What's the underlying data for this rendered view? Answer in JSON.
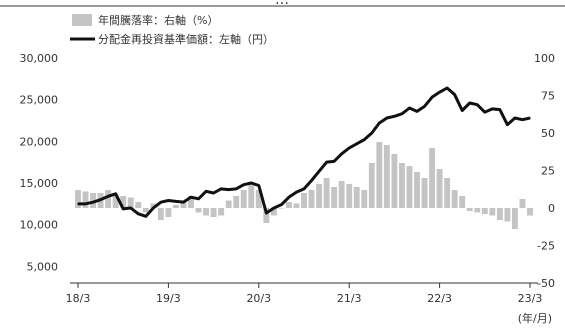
{
  "chart_data": {
    "type": "bar+line",
    "title": "…",
    "legend_placement": "top-left",
    "x_ticks": [
      "18/3",
      "19/3",
      "20/3",
      "21/3",
      "22/3",
      "23/3"
    ],
    "x_unit": "(年/月)",
    "left_axis": {
      "ticks": [
        "30,000",
        "25,000",
        "20,000",
        "15,000",
        "10,000",
        "5,000"
      ],
      "ylim": [
        3000,
        30000
      ]
    },
    "right_axis": {
      "ticks": [
        "100",
        "75",
        "50",
        "25",
        "0",
        "-25",
        "-50"
      ],
      "ylim": [
        -50,
        100
      ]
    },
    "grid": false,
    "colors": {
      "bar": "#c4c4c4",
      "line": "#111111"
    },
    "series": [
      {
        "name": "年間騰落率：右軸（%）",
        "kind": "bar",
        "axis": "right",
        "x": [
          "18/3",
          "18/4",
          "18/5",
          "18/6",
          "18/7",
          "18/8",
          "18/9",
          "18/10",
          "18/11",
          "18/12",
          "19/1",
          "19/2",
          "19/3",
          "19/4",
          "19/5",
          "19/6",
          "19/7",
          "19/8",
          "19/9",
          "19/10",
          "19/11",
          "19/12",
          "20/1",
          "20/2",
          "20/3",
          "20/4",
          "20/5",
          "20/6",
          "20/7",
          "20/8",
          "20/9",
          "20/10",
          "20/11",
          "20/12",
          "21/1",
          "21/2",
          "21/3",
          "21/4",
          "21/5",
          "21/6",
          "21/7",
          "21/8",
          "21/9",
          "21/10",
          "21/11",
          "21/12",
          "22/1",
          "22/2",
          "22/3",
          "22/4",
          "22/5",
          "22/6",
          "22/7",
          "22/8",
          "22/9",
          "22/10",
          "22/11",
          "22/12",
          "23/1",
          "23/2",
          "23/3"
        ],
        "values": [
          12,
          11,
          10,
          10,
          12,
          9,
          8,
          7,
          4,
          -3,
          3,
          -8,
          -6,
          2,
          4,
          8,
          -3,
          -5,
          -6,
          -5,
          5,
          8,
          12,
          16,
          12,
          -10,
          -5,
          0,
          4,
          3,
          10,
          12,
          16,
          20,
          14,
          18,
          16,
          14,
          12,
          30,
          44,
          42,
          36,
          30,
          28,
          24,
          20,
          40,
          26,
          20,
          12,
          8,
          -2,
          -3,
          -4,
          -5,
          -8,
          -9,
          -14,
          6,
          -5
        ]
      },
      {
        "name": "分配金再投資基準価額：左軸（円）",
        "kind": "line",
        "axis": "left",
        "x": [
          "18/3",
          "18/4",
          "18/5",
          "18/6",
          "18/7",
          "18/8",
          "18/9",
          "18/10",
          "18/11",
          "18/12",
          "19/1",
          "19/2",
          "19/3",
          "19/4",
          "19/5",
          "19/6",
          "19/7",
          "19/8",
          "19/9",
          "19/10",
          "19/11",
          "19/12",
          "20/1",
          "20/2",
          "20/3",
          "20/4",
          "20/5",
          "20/6",
          "20/7",
          "20/8",
          "20/9",
          "20/10",
          "20/11",
          "20/12",
          "21/1",
          "21/2",
          "21/3",
          "21/4",
          "21/5",
          "21/6",
          "21/7",
          "21/8",
          "21/9",
          "21/10",
          "21/11",
          "21/12",
          "22/1",
          "22/2",
          "22/3",
          "22/4",
          "22/5",
          "22/6",
          "22/7",
          "22/8",
          "22/9",
          "22/10",
          "22/11",
          "22/12",
          "23/1",
          "23/2",
          "23/3"
        ],
        "values": [
          12500,
          12500,
          12700,
          13000,
          13400,
          13700,
          11900,
          12000,
          11300,
          11000,
          12000,
          12700,
          12900,
          12800,
          12700,
          13300,
          13100,
          14000,
          13800,
          14300,
          14200,
          14300,
          14800,
          15000,
          14700,
          11400,
          12000,
          12400,
          13300,
          13900,
          14300,
          15300,
          16400,
          17500,
          17600,
          18500,
          19200,
          19700,
          20200,
          21000,
          22200,
          22800,
          23000,
          23300,
          24000,
          23600,
          24200,
          25300,
          25900,
          26400,
          25600,
          23700,
          24600,
          24400,
          23500,
          23900,
          23800,
          22000,
          22800,
          22600,
          22800
        ]
      }
    ]
  }
}
